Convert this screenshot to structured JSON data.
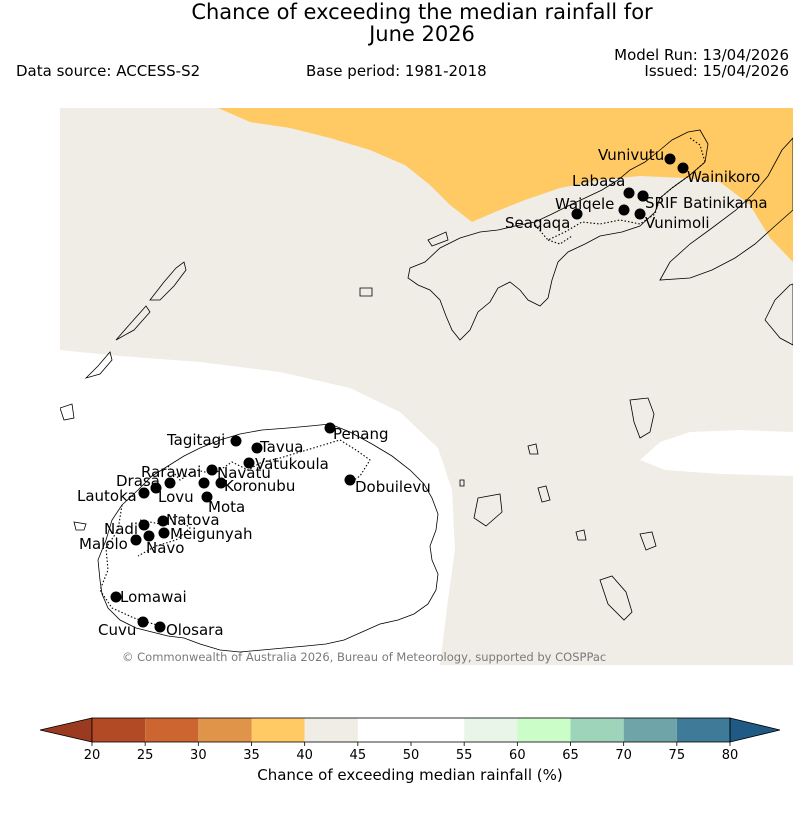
{
  "header": {
    "title_line1": "Chance of exceeding the median rainfall for",
    "title_line2": "June 2026",
    "data_source": "Data source: ACCESS-S2",
    "base_period": "Base period: 1981-2018",
    "model_run": "Model Run: 13/04/2026",
    "issued": "Issued: 15/04/2026"
  },
  "map": {
    "credit": "© Commonwealth of Australia 2026, Bureau of Meteorology, supported by COSPPac",
    "stations": [
      {
        "name": "Vunivutu"
      },
      {
        "name": "Wainikoro"
      },
      {
        "name": "Labasa"
      },
      {
        "name": "Waiqele"
      },
      {
        "name": "SRIF"
      },
      {
        "name": "Batinikama"
      },
      {
        "name": "Seaqaqa"
      },
      {
        "name": "Vunimoli"
      },
      {
        "name": "Tagitagi"
      },
      {
        "name": "Tavua"
      },
      {
        "name": "Penang"
      },
      {
        "name": "Vatukoula"
      },
      {
        "name": "Rarawai"
      },
      {
        "name": "Navatu"
      },
      {
        "name": "Drasa"
      },
      {
        "name": "Koronubu"
      },
      {
        "name": "Lautoka"
      },
      {
        "name": "Lovu"
      },
      {
        "name": "Dobuilevu"
      },
      {
        "name": "Mota"
      },
      {
        "name": "Natova"
      },
      {
        "name": "Nadi"
      },
      {
        "name": "Meigunyah"
      },
      {
        "name": "Malolo"
      },
      {
        "name": "Navo"
      },
      {
        "name": "Lomawai"
      },
      {
        "name": "Cuvu"
      },
      {
        "name": "Olosara"
      }
    ]
  },
  "legend": {
    "title": "Chance of exceeding median rainfall (%)",
    "ticks": [
      "20",
      "25",
      "30",
      "35",
      "40",
      "45",
      "50",
      "55",
      "60",
      "65",
      "70",
      "75",
      "80"
    ],
    "colors": [
      "#b34a26",
      "#cc6530",
      "#e0944a",
      "#ffca63",
      "#f0ece6",
      "#ffffff",
      "#ffffff",
      "#eaf5ea",
      "#cbfdc9",
      "#9ed4ba",
      "#6fa5a8",
      "#3f7a99"
    ],
    "under_color": "#9a3a20",
    "over_color": "#1f5a85"
  }
}
